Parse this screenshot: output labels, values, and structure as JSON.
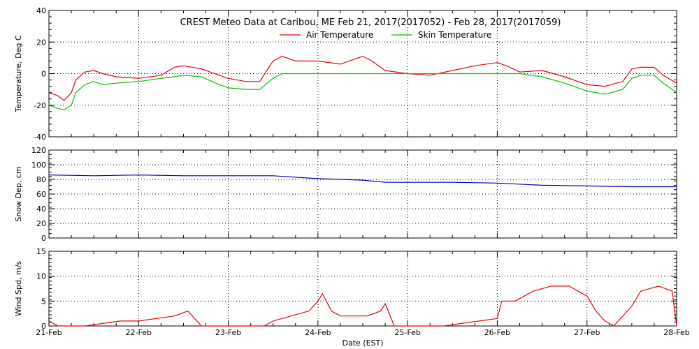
{
  "chart_data": {
    "title": "CREST Meteo Data at Caribou, ME   Feb 21, 2017(2017052) - Feb 28, 2017(2017059)",
    "xlabel": "Date (EST)",
    "x_tick_labels": [
      "21-Feb",
      "22-Feb",
      "23-Feb",
      "24-Feb",
      "25-Feb",
      "26-Feb",
      "27-Feb",
      "28-Feb"
    ],
    "grid": true,
    "colors": {
      "air": "#e8000b",
      "skin": "#00c400",
      "snow": "#0000b0",
      "wind": "#e8000b"
    },
    "panels": [
      {
        "type": "line",
        "ylabel": "Temperature, Deg C",
        "ylim": [
          -40,
          40
        ],
        "y_ticks": [
          -40,
          -20,
          0,
          20,
          40
        ],
        "legend_position": "top-center",
        "series": [
          {
            "name": "Air Temperature",
            "color": "#e8000b",
            "x": [
              0,
              0.1,
              0.17,
              0.25,
              0.3,
              0.4,
              0.5,
              0.6,
              0.75,
              1.0,
              1.25,
              1.4,
              1.5,
              1.7,
              1.9,
              2.0,
              2.2,
              2.35,
              2.5,
              2.6,
              2.75,
              3.0,
              3.25,
              3.5,
              3.6,
              3.75,
              4.0,
              4.25,
              4.5,
              4.75,
              5.0,
              5.1,
              5.25,
              5.5,
              5.75,
              6.0,
              6.2,
              6.4,
              6.5,
              6.6,
              6.75,
              6.85,
              7.0
            ],
            "y": [
              -12,
              -14,
              -17,
              -12,
              -4,
              1,
              2,
              0,
              -2,
              -3,
              -1,
              4,
              5,
              3,
              -1,
              -3,
              -5,
              -5,
              8,
              11,
              8,
              8,
              6,
              11,
              8,
              2,
              0,
              -1,
              2,
              5,
              7,
              5,
              1,
              2,
              -2,
              -7,
              -8,
              -5,
              3,
              4,
              4,
              -1,
              -6
            ]
          },
          {
            "name": "Skin Temperature",
            "color": "#00c400",
            "x": [
              0,
              0.1,
              0.17,
              0.25,
              0.3,
              0.4,
              0.5,
              0.6,
              0.75,
              1.0,
              1.25,
              1.4,
              1.5,
              1.7,
              1.9,
              2.0,
              2.2,
              2.35,
              2.5,
              2.6,
              2.75,
              3.0,
              3.25,
              3.5,
              3.6,
              3.75,
              4.0,
              4.25,
              4.5,
              4.75,
              5.0,
              5.1,
              5.25,
              5.5,
              5.75,
              6.0,
              6.2,
              6.4,
              6.5,
              6.6,
              6.75,
              6.85,
              7.0
            ],
            "y": [
              -20,
              -22,
              -23,
              -20,
              -12,
              -7,
              -5,
              -7,
              -6,
              -5,
              -3,
              -2,
              -1,
              -2,
              -7,
              -9,
              -10,
              -10,
              -3,
              0,
              0,
              0,
              0,
              0,
              0,
              0,
              0,
              0,
              0,
              0,
              0,
              0,
              0,
              -2,
              -6,
              -11,
              -13,
              -10,
              -3,
              -1,
              -1,
              -6,
              -12
            ]
          }
        ]
      },
      {
        "type": "line",
        "ylabel": "Snow Dep, cm",
        "ylim": [
          0,
          120
        ],
        "y_ticks": [
          0,
          20,
          40,
          60,
          80,
          100,
          120
        ],
        "series": [
          {
            "color": "#0000b0",
            "x": [
              0,
              0.5,
              1.0,
              1.5,
              2.0,
              2.5,
              3.0,
              3.5,
              3.75,
              4.0,
              4.5,
              5.0,
              5.5,
              6.0,
              6.5,
              7.0
            ],
            "y": [
              86,
              85,
              86,
              85,
              85,
              85,
              81,
              79,
              76,
              76,
              76,
              75,
              72,
              71,
              70,
              70
            ]
          }
        ]
      },
      {
        "type": "line",
        "ylabel": "Wind Spd, m/s",
        "ylim": [
          0,
          15
        ],
        "y_ticks": [
          0,
          5,
          10,
          15
        ],
        "series": [
          {
            "color": "#e8000b",
            "x": [
              0,
              0.1,
              0.2,
              0.4,
              0.6,
              0.8,
              1.0,
              1.2,
              1.4,
              1.55,
              1.7,
              2.0,
              2.2,
              2.4,
              2.5,
              2.7,
              2.9,
              3.0,
              3.05,
              3.15,
              3.25,
              3.4,
              3.55,
              3.7,
              3.75,
              3.85,
              4.0,
              4.2,
              4.4,
              4.6,
              4.8,
              5.0,
              5.05,
              5.2,
              5.4,
              5.6,
              5.8,
              6.0,
              6.1,
              6.2,
              6.3,
              6.5,
              6.6,
              6.8,
              6.95,
              7.0
            ],
            "y": [
              1,
              0,
              0,
              0,
              0.5,
              1,
              1,
              1.5,
              2,
              3,
              0,
              0,
              0,
              0,
              1,
              2,
              3,
              5,
              6.5,
              3,
              2,
              2,
              2,
              3,
              4.5,
              0,
              0,
              0,
              0,
              0.5,
              1,
              1.5,
              5,
              5,
              7,
              8,
              8,
              6,
              3,
              1,
              0,
              4,
              7,
              8,
              7,
              0
            ]
          }
        ]
      }
    ]
  }
}
